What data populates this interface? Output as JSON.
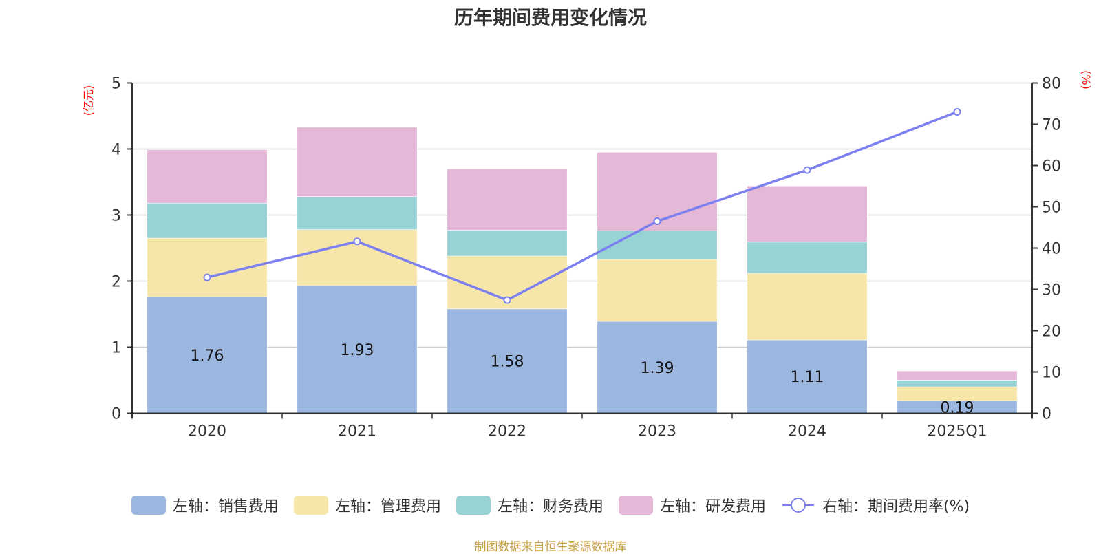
{
  "chart_data": {
    "type": "bar",
    "stacked": true,
    "title": "历年期间费用变化情况",
    "categories": [
      "2020",
      "2021",
      "2022",
      "2023",
      "2024",
      "2025Q1"
    ],
    "left_axis": {
      "unit_label": "(亿元)",
      "ylim": [
        0,
        5
      ],
      "ticks": [
        0,
        1,
        2,
        3,
        4,
        5
      ]
    },
    "right_axis": {
      "unit_label": "(%)",
      "ylim": [
        0,
        80
      ],
      "ticks": [
        0,
        10,
        20,
        30,
        40,
        50,
        60,
        70,
        80
      ]
    },
    "grid": true,
    "series": [
      {
        "name": "左轴：销售费用",
        "type": "bar",
        "axis": "left",
        "color": "#9bb7e0",
        "values": [
          1.76,
          1.93,
          1.58,
          1.39,
          1.11,
          0.19
        ],
        "data_labels": [
          "1.76",
          "1.93",
          "1.58",
          "1.39",
          "1.11",
          "0.19"
        ]
      },
      {
        "name": "左轴：管理费用",
        "type": "bar",
        "axis": "left",
        "color": "#f7e6aa",
        "values": [
          0.89,
          0.85,
          0.8,
          0.94,
          1.01,
          0.21
        ]
      },
      {
        "name": "左轴：财务费用",
        "type": "bar",
        "axis": "left",
        "color": "#97d3d4",
        "values": [
          0.53,
          0.5,
          0.39,
          0.43,
          0.47,
          0.1
        ]
      },
      {
        "name": "左轴：研发费用",
        "type": "bar",
        "axis": "left",
        "color": "#e6b8d7",
        "values": [
          0.81,
          1.05,
          0.93,
          1.19,
          0.85,
          0.14
        ]
      },
      {
        "name": "右轴：期间费用率(%)",
        "type": "line",
        "axis": "right",
        "color": "#7b7ff0",
        "values": [
          32.9,
          41.6,
          27.4,
          46.5,
          58.9,
          73.0
        ]
      }
    ],
    "legend_position": "bottom-center",
    "source_note": "制图数据来自恒生聚源数据库"
  }
}
